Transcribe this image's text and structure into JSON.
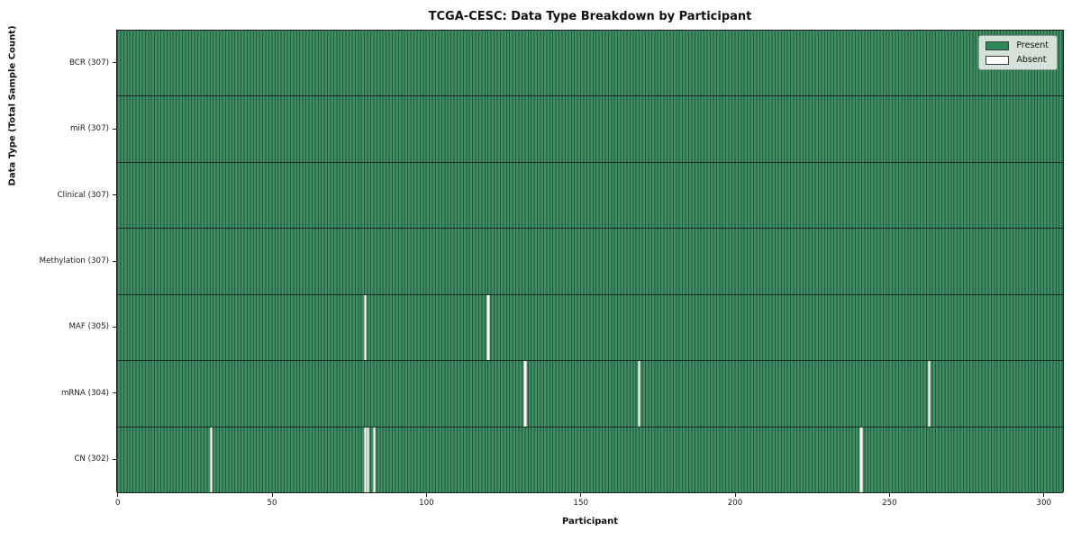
{
  "title": "TCGA-CESC: Data Type Breakdown by Participant",
  "chart_data": {
    "type": "heatmap",
    "title": "TCGA-CESC: Data Type Breakdown by Participant",
    "xlabel": "Participant",
    "ylabel": "Data Type (Total Sample Count)",
    "x_ticks": [
      0,
      50,
      100,
      150,
      200,
      250,
      300
    ],
    "x_range": [
      0,
      307
    ],
    "n_participants": 307,
    "grid": false,
    "legend_position": "upper right",
    "legend": [
      {
        "label": "Present",
        "color": "#2e8b57"
      },
      {
        "label": "Absent",
        "color": "#ffffff"
      }
    ],
    "colors": {
      "present_fill": "#3e9065",
      "present_edge": "#24523a",
      "absent_fill": "#ffffff",
      "row_divider": "#142b1e"
    },
    "rows": [
      {
        "label": "BCR (307)",
        "data_type": "BCR",
        "present_count": 307,
        "absent_participants": []
      },
      {
        "label": "miR (307)",
        "data_type": "miR",
        "present_count": 307,
        "absent_participants": []
      },
      {
        "label": "Clinical (307)",
        "data_type": "Clinical",
        "present_count": 307,
        "absent_participants": []
      },
      {
        "label": "Methylation (307)",
        "data_type": "Methylation",
        "present_count": 307,
        "absent_participants": []
      },
      {
        "label": "MAF (305)",
        "data_type": "MAF",
        "present_count": 305,
        "absent_participants": [
          80,
          120
        ]
      },
      {
        "label": "mRNA (304)",
        "data_type": "mRNA",
        "present_count": 304,
        "absent_participants": [
          132,
          169,
          263
        ]
      },
      {
        "label": "CN (302)",
        "data_type": "CN",
        "present_count": 302,
        "absent_participants": [
          30,
          80,
          81,
          83,
          241
        ]
      }
    ]
  }
}
